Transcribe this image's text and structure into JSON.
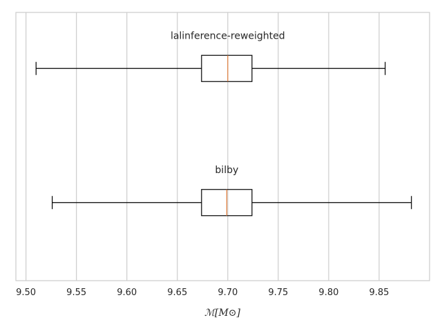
{
  "chart_data": {
    "type": "boxplot",
    "orientation": "horizontal",
    "xlabel": "ℳ[M⊙]",
    "xlim": [
      9.49,
      9.9
    ],
    "xticks": [
      "9.50",
      "9.55",
      "9.60",
      "9.65",
      "9.70",
      "9.75",
      "9.80",
      "9.85"
    ],
    "grid": true,
    "colors": {
      "box": "#000000",
      "median": "#e07b39",
      "grid": "#cccccc",
      "frame": "#cccccc"
    },
    "series": [
      {
        "name": "lalinference-reweighted",
        "whisker_low": 9.51,
        "q1": 9.674,
        "median": 9.7,
        "q3": 9.724,
        "whisker_high": 9.856
      },
      {
        "name": "bilby",
        "whisker_low": 9.526,
        "q1": 9.674,
        "median": 9.699,
        "q3": 9.724,
        "whisker_high": 9.882
      }
    ]
  }
}
